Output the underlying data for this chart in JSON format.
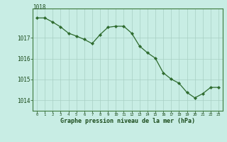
{
  "x": [
    0,
    1,
    2,
    3,
    4,
    5,
    6,
    7,
    8,
    9,
    10,
    11,
    12,
    13,
    14,
    15,
    16,
    17,
    18,
    19,
    20,
    21,
    22,
    23
  ],
  "y": [
    1017.95,
    1017.95,
    1017.75,
    1017.52,
    1017.22,
    1017.08,
    1016.92,
    1016.72,
    1017.15,
    1017.5,
    1017.55,
    1017.55,
    1017.22,
    1016.6,
    1016.28,
    1016.02,
    1015.32,
    1015.02,
    1014.82,
    1014.38,
    1014.12,
    1014.32,
    1014.62,
    1014.62
  ],
  "line_color": "#2d6a2d",
  "marker_color": "#2d6a2d",
  "bg_color": "#c8ede4",
  "grid_color": "#a8cfc4",
  "yticks": [
    1014,
    1015,
    1016,
    1017
  ],
  "xlabel": "Graphe pression niveau de la mer (hPa)",
  "ylim": [
    1013.5,
    1018.4
  ],
  "xlim": [
    -0.5,
    23.5
  ],
  "top_label": "1018"
}
